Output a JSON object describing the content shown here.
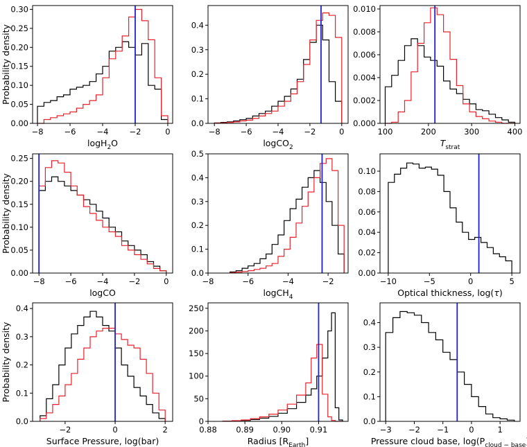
{
  "colors": {
    "black": "#000000",
    "red": "#e8202a",
    "blue": "#1f1fd6"
  },
  "ylabel": "Probability density",
  "chart_data": [
    {
      "type": "histogram",
      "xlabel": "logH",
      "xlabel_sub": "2",
      "xlabel_after": "O",
      "xlabel_italic": "",
      "xlim": [
        -8.3,
        0.3
      ],
      "ylim": [
        0,
        0.31
      ],
      "xticks": [
        -8,
        -6,
        -4,
        -2,
        0
      ],
      "xtick_labels": [
        "−8",
        "−6",
        "−4",
        "−2",
        "0"
      ],
      "yticks": [
        0.0,
        0.05,
        0.1,
        0.15,
        0.2,
        0.25,
        0.3
      ],
      "ytick_labels": [
        "0.00",
        "0.05",
        "0.10",
        "0.15",
        "0.20",
        "0.25",
        "0.30"
      ],
      "bin_edges": [
        -8.0,
        -7.6,
        -7.2,
        -6.8,
        -6.4,
        -6.0,
        -5.6,
        -5.2,
        -4.8,
        -4.4,
        -4.0,
        -3.6,
        -3.2,
        -2.8,
        -2.4,
        -2.0,
        -1.6,
        -1.2,
        -0.8,
        -0.4,
        0.0
      ],
      "series_black": [
        0.045,
        0.055,
        0.06,
        0.07,
        0.075,
        0.09,
        0.095,
        0.1,
        0.11,
        0.13,
        0.15,
        0.19,
        0.2,
        0.215,
        0.2,
        0.18,
        0.21,
        0.1,
        0.09,
        0.01
      ],
      "series_red": [
        0.0,
        0.01,
        0.015,
        0.02,
        0.025,
        0.03,
        0.04,
        0.05,
        0.06,
        0.075,
        0.12,
        0.17,
        0.19,
        0.23,
        0.28,
        0.3,
        0.27,
        0.22,
        0.12,
        0.02
      ],
      "truth": -2.0
    },
    {
      "type": "histogram",
      "xlabel": "logCO",
      "xlabel_sub": "2",
      "xlabel_after": "",
      "xlabel_italic": "",
      "xlim": [
        -8.4,
        0.4
      ],
      "ylim": [
        0,
        0.48
      ],
      "xticks": [
        -8,
        -6,
        -4,
        -2,
        0
      ],
      "xtick_labels": [
        "−8",
        "−6",
        "−4",
        "−2",
        "0"
      ],
      "yticks": [
        0.0,
        0.1,
        0.2,
        0.3,
        0.4
      ],
      "ytick_labels": [
        "0.0",
        "0.1",
        "0.2",
        "0.3",
        "0.4"
      ],
      "bin_edges": [
        -8.0,
        -7.6,
        -7.2,
        -6.8,
        -6.4,
        -6.0,
        -5.6,
        -5.2,
        -4.8,
        -4.4,
        -4.0,
        -3.6,
        -3.2,
        -2.8,
        -2.4,
        -2.0,
        -1.6,
        -1.2,
        -0.8,
        -0.4,
        0.0
      ],
      "series_black": [
        0.002,
        0.004,
        0.006,
        0.01,
        0.015,
        0.02,
        0.03,
        0.04,
        0.05,
        0.07,
        0.09,
        0.11,
        0.14,
        0.18,
        0.26,
        0.33,
        0.4,
        0.34,
        0.17,
        0.09
      ],
      "series_red": [
        0.001,
        0.002,
        0.004,
        0.006,
        0.01,
        0.013,
        0.02,
        0.03,
        0.04,
        0.05,
        0.07,
        0.09,
        0.12,
        0.17,
        0.24,
        0.34,
        0.42,
        0.45,
        0.44,
        0.35
      ],
      "truth": -1.3
    },
    {
      "type": "histogram",
      "xlabel": "",
      "xlabel_sub": "strat",
      "xlabel_after": "",
      "xlabel_italic": "T",
      "xlim": [
        88,
        412
      ],
      "ylim": [
        0,
        0.0103
      ],
      "xticks": [
        100,
        200,
        300,
        400
      ],
      "xtick_labels": [
        "100",
        "200",
        "300",
        "400"
      ],
      "yticks": [
        0.0,
        0.002,
        0.004,
        0.006,
        0.008,
        0.01
      ],
      "ytick_labels": [
        "0.000",
        "0.002",
        "0.004",
        "0.006",
        "0.008",
        "0.010"
      ],
      "bin_edges": [
        100,
        115,
        130,
        145,
        160,
        175,
        190,
        205,
        220,
        235,
        250,
        265,
        280,
        295,
        310,
        325,
        340,
        355,
        370,
        385,
        400
      ],
      "series_black": [
        0.0032,
        0.0042,
        0.0055,
        0.0068,
        0.0074,
        0.0068,
        0.0058,
        0.0055,
        0.005,
        0.0037,
        0.003,
        0.0026,
        0.0021,
        0.0017,
        0.0012,
        0.0011,
        0.0008,
        0.0005,
        0.0003,
        0.0001
      ],
      "series_red": [
        0.0,
        0.0001,
        0.001,
        0.002,
        0.0045,
        0.007,
        0.0088,
        0.0101,
        0.0095,
        0.008,
        0.0056,
        0.0033,
        0.0017,
        0.001,
        0.0006,
        0.0004,
        0.0002,
        0.0001,
        0.0,
        0.0
      ],
      "truth": 215
    },
    {
      "type": "histogram",
      "xlabel": "logCO",
      "xlabel_sub": "",
      "xlabel_after": "",
      "xlabel_italic": "",
      "xlim": [
        -8.4,
        0.4
      ],
      "ylim": [
        0,
        0.26
      ],
      "xticks": [
        -8,
        -6,
        -4,
        -2,
        0
      ],
      "xtick_labels": [
        "−8",
        "−6",
        "−4",
        "−2",
        "0"
      ],
      "yticks": [
        0.0,
        0.05,
        0.1,
        0.15,
        0.2,
        0.25
      ],
      "ytick_labels": [
        "0.00",
        "0.05",
        "0.10",
        "0.15",
        "0.20",
        "0.25"
      ],
      "bin_edges": [
        -8.0,
        -7.6,
        -7.2,
        -6.8,
        -6.4,
        -6.0,
        -5.6,
        -5.2,
        -4.8,
        -4.4,
        -4.0,
        -3.6,
        -3.2,
        -2.8,
        -2.4,
        -2.0,
        -1.6,
        -1.2,
        -0.8,
        -0.4,
        0.0
      ],
      "series_black": [
        0.18,
        0.2,
        0.21,
        0.2,
        0.19,
        0.18,
        0.17,
        0.16,
        0.15,
        0.135,
        0.12,
        0.1,
        0.09,
        0.07,
        0.06,
        0.05,
        0.04,
        0.025,
        0.015,
        0.005
      ],
      "series_red": [
        0.19,
        0.23,
        0.245,
        0.24,
        0.22,
        0.19,
        0.17,
        0.145,
        0.13,
        0.115,
        0.1,
        0.09,
        0.08,
        0.06,
        0.05,
        0.04,
        0.03,
        0.02,
        0.01,
        0.005
      ],
      "truth": -8.0
    },
    {
      "type": "histogram",
      "xlabel": "logCH",
      "xlabel_sub": "4",
      "xlabel_after": "",
      "xlabel_italic": "",
      "xlim": [
        -8.0,
        -1.0
      ],
      "ylim": [
        0,
        0.5
      ],
      "xticks": [
        -8,
        -6,
        -4,
        -2
      ],
      "xtick_labels": [
        "−8",
        "−6",
        "−4",
        "−2"
      ],
      "yticks": [
        0.0,
        0.1,
        0.2,
        0.3,
        0.4,
        0.5
      ],
      "ytick_labels": [
        "0.0",
        "0.1",
        "0.2",
        "0.3",
        "0.4",
        "0.5"
      ],
      "bin_edges": [
        -6.9,
        -6.6,
        -6.3,
        -6.0,
        -5.7,
        -5.4,
        -5.1,
        -4.8,
        -4.5,
        -4.2,
        -3.9,
        -3.6,
        -3.3,
        -3.0,
        -2.7,
        -2.4,
        -2.1,
        -1.8,
        -1.5,
        -1.2
      ],
      "series_black": [
        0.005,
        0.01,
        0.02,
        0.03,
        0.04,
        0.06,
        0.08,
        0.12,
        0.16,
        0.22,
        0.27,
        0.31,
        0.36,
        0.4,
        0.43,
        0.38,
        0.3,
        0.2,
        0.08
      ],
      "series_red": [
        0.002,
        0.004,
        0.006,
        0.01,
        0.015,
        0.02,
        0.03,
        0.04,
        0.07,
        0.1,
        0.15,
        0.21,
        0.28,
        0.34,
        0.4,
        0.46,
        0.48,
        0.43,
        0.2
      ],
      "truth": -2.3
    },
    {
      "type": "histogram",
      "xlabel": "Optical thickness, log(",
      "xlabel_sub": "",
      "xlabel_after": ")",
      "xlabel_italic": "τ",
      "xlim": [
        -11,
        6
      ],
      "ylim": [
        0,
        0.117
      ],
      "xticks": [
        -10,
        -5,
        0,
        5
      ],
      "xtick_labels": [
        "−10",
        "−5",
        "0",
        "5"
      ],
      "yticks": [
        0.0,
        0.02,
        0.04,
        0.06,
        0.08,
        0.1
      ],
      "ytick_labels": [
        "0.00",
        "0.02",
        "0.04",
        "0.06",
        "0.08",
        "0.10"
      ],
      "bin_edges": [
        -10,
        -9.25,
        -8.5,
        -7.75,
        -7.0,
        -6.25,
        -5.5,
        -4.75,
        -4.0,
        -3.25,
        -2.5,
        -1.75,
        -1.0,
        -0.25,
        0.5,
        1.25,
        2.0,
        2.75,
        3.5,
        4.25,
        5.0
      ],
      "series_black": [
        0.089,
        0.097,
        0.103,
        0.108,
        0.107,
        0.103,
        0.104,
        0.102,
        0.096,
        0.08,
        0.064,
        0.05,
        0.04,
        0.033,
        0.035,
        0.03,
        0.025,
        0.019,
        0.016,
        0.012
      ],
      "series_red": [],
      "truth": 1.0
    },
    {
      "type": "histogram",
      "xlabel": "Surface Pressure, log(bar)",
      "xlabel_sub": "",
      "xlabel_after": "",
      "xlabel_italic": "",
      "xlim": [
        -3.3,
        2.3
      ],
      "ylim": [
        0,
        0.42
      ],
      "xticks": [
        -2,
        0,
        2
      ],
      "xtick_labels": [
        "−2",
        "0",
        "2"
      ],
      "yticks": [
        0.0,
        0.1,
        0.2,
        0.3,
        0.4
      ],
      "ytick_labels": [
        "0.0",
        "0.1",
        "0.2",
        "0.3",
        "0.4"
      ],
      "bin_edges": [
        -3.0,
        -2.75,
        -2.5,
        -2.25,
        -2.0,
        -1.75,
        -1.5,
        -1.25,
        -1.0,
        -0.75,
        -0.5,
        -0.25,
        0.0,
        0.25,
        0.5,
        0.75,
        1.0,
        1.25,
        1.5,
        1.75,
        2.0
      ],
      "series_black": [
        0.02,
        0.08,
        0.13,
        0.2,
        0.26,
        0.31,
        0.34,
        0.37,
        0.39,
        0.37,
        0.34,
        0.32,
        0.26,
        0.2,
        0.16,
        0.12,
        0.09,
        0.06,
        0.03,
        0.01
      ],
      "series_red": [
        0.01,
        0.03,
        0.06,
        0.09,
        0.13,
        0.17,
        0.22,
        0.26,
        0.3,
        0.32,
        0.33,
        0.33,
        0.31,
        0.29,
        0.27,
        0.26,
        0.22,
        0.17,
        0.1,
        0.04
      ],
      "truth": 0.0
    },
    {
      "type": "histogram",
      "xlabel": "Radius [R",
      "xlabel_sub": "Earth",
      "xlabel_after": "]",
      "xlabel_italic": "",
      "xlim": [
        0.88,
        0.918
      ],
      "ylim": [
        0,
        262
      ],
      "xticks": [
        0.88,
        0.89,
        0.9,
        0.91
      ],
      "xtick_labels": [
        "0.88",
        "0.89",
        "0.90",
        "0.91"
      ],
      "yticks": [
        0,
        50,
        100,
        150,
        200,
        250
      ],
      "ytick_labels": [
        "0",
        "50",
        "100",
        "150",
        "200",
        "250"
      ],
      "bin_edges": [
        0.884,
        0.8865,
        0.889,
        0.8915,
        0.894,
        0.8965,
        0.899,
        0.9015,
        0.904,
        0.9065,
        0.908,
        0.9095,
        0.911,
        0.9125,
        0.9135,
        0.9145,
        0.9155,
        0.9165
      ],
      "series_black": [
        0.5,
        1,
        2,
        4,
        7,
        11,
        18,
        28,
        42,
        58,
        72,
        100,
        140,
        200,
        240,
        30,
        3
      ],
      "series_red": [
        0.5,
        1.5,
        3,
        6,
        10,
        16,
        25,
        38,
        58,
        85,
        140,
        170,
        60,
        10,
        2,
        0,
        0
      ],
      "truth": 0.91
    },
    {
      "type": "histogram",
      "xlabel": "Pressure cloud base, log(P",
      "xlabel_sub": "cloud − base",
      "xlabel_after": ")",
      "xlabel_italic": "",
      "xlim": [
        -3.2,
        1.7
      ],
      "ylim": [
        0,
        0.48
      ],
      "xticks": [
        -3,
        -2,
        -1,
        0,
        1
      ],
      "xtick_labels": [
        "−3",
        "−2",
        "−1",
        "0",
        "1"
      ],
      "yticks": [
        0.0,
        0.1,
        0.2,
        0.3,
        0.4
      ],
      "ytick_labels": [
        "0.0",
        "0.1",
        "0.2",
        "0.3",
        "0.4"
      ],
      "bin_edges": [
        -3.0,
        -2.75,
        -2.5,
        -2.25,
        -2.0,
        -1.75,
        -1.5,
        -1.25,
        -1.0,
        -0.75,
        -0.5,
        -0.25,
        0.0,
        0.25,
        0.5,
        0.75,
        1.0,
        1.25,
        1.5
      ],
      "series_black": [
        0.36,
        0.42,
        0.445,
        0.44,
        0.43,
        0.4,
        0.36,
        0.33,
        0.28,
        0.25,
        0.2,
        0.15,
        0.1,
        0.06,
        0.03,
        0.015,
        0.01,
        0.005
      ],
      "series_red": [],
      "truth": -0.5
    }
  ]
}
